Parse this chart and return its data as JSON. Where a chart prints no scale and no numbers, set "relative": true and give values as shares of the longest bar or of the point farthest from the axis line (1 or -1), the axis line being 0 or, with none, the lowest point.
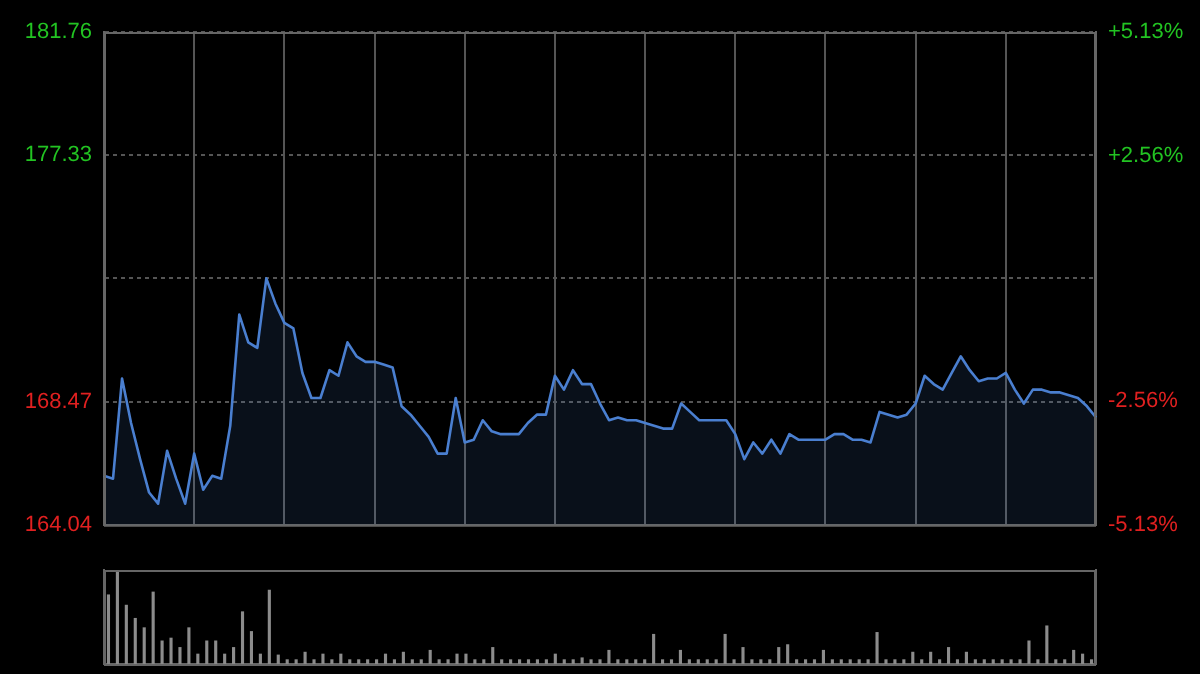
{
  "chart_data": [
    {
      "type": "area",
      "categories": [
        null,
        null,
        null,
        null,
        null,
        null,
        null,
        null,
        null,
        null,
        null,
        null,
        null,
        null,
        null,
        null,
        null,
        null,
        null,
        null,
        null,
        null,
        null,
        null,
        null,
        null,
        null,
        null,
        null,
        null,
        null,
        null,
        null,
        null,
        null,
        null,
        null,
        null,
        null,
        null,
        null,
        null,
        null,
        null,
        null,
        null,
        null,
        null,
        null,
        null,
        null,
        null,
        null,
        null,
        null,
        null,
        null,
        null,
        null,
        null,
        null,
        null,
        null,
        null,
        null,
        null,
        null,
        null,
        null,
        null,
        null,
        null,
        null,
        null,
        null,
        null,
        null,
        null,
        null,
        null,
        null,
        null,
        null,
        null,
        null,
        null,
        null,
        null,
        null,
        null,
        null,
        null,
        null,
        null,
        null,
        null,
        null,
        null,
        null,
        null,
        null,
        null,
        null,
        null,
        null,
        null,
        null,
        null,
        null,
        null,
        null
      ],
      "series": [
        {
          "color": "#4a7fd0",
          "values": [
            165.8,
            165.7,
            169.3,
            167.7,
            166.4,
            165.2,
            164.8,
            166.7,
            165.7,
            164.8,
            166.6,
            165.3,
            165.8,
            165.7,
            167.6,
            171.6,
            170.6,
            170.4,
            172.9,
            172.0,
            171.3,
            171.1,
            169.5,
            168.6,
            168.6,
            169.6,
            169.4,
            170.6,
            170.1,
            169.9,
            169.9,
            169.8,
            169.7,
            168.3,
            168.0,
            167.6,
            167.2,
            166.6,
            166.6,
            168.6,
            167.0,
            167.1,
            167.8,
            167.4,
            167.3,
            167.3,
            167.3,
            167.7,
            168.0,
            168.0,
            169.4,
            168.9,
            169.6,
            169.1,
            169.1,
            168.4,
            167.8,
            167.9,
            167.8,
            167.8,
            167.7,
            167.6,
            167.5,
            167.5,
            168.4,
            168.1,
            167.8,
            167.8,
            167.8,
            167.8,
            167.3,
            166.4,
            167.0,
            166.6,
            167.1,
            166.6,
            167.3,
            167.1,
            167.1,
            167.1,
            167.1,
            167.3,
            167.3,
            167.1,
            167.1,
            167.0,
            168.1,
            168.0,
            167.9,
            168.0,
            168.4,
            169.4,
            169.1,
            168.9,
            169.5,
            170.1,
            169.6,
            169.2,
            169.3,
            169.3,
            169.5,
            168.9,
            168.4,
            168.9,
            168.9,
            168.8,
            168.8,
            168.7,
            168.6,
            168.3,
            167.9
          ]
        }
      ],
      "ylim": [
        164.04,
        181.76
      ],
      "yticks": [
        164.04,
        168.47,
        {
          "value": 172.9,
          "label": null
        },
        177.33,
        181.76
      ],
      "y2lim": [
        -5.13,
        5.13
      ],
      "y2ticks": [
        {
          "value": -5.13,
          "label": "-5.13%"
        },
        {
          "value": -2.56,
          "label": "-2.56%"
        },
        {
          "value": 0,
          "label": null
        },
        {
          "value": 2.56,
          "label": "+2.56%"
        },
        {
          "value": 5.13,
          "label": "+5.13%"
        }
      ],
      "grid": true,
      "legend": false,
      "marker": "none",
      "line_style": "solid"
    },
    {
      "type": "bar",
      "relative": true,
      "categories": [
        null,
        null,
        null,
        null,
        null,
        null,
        null,
        null,
        null,
        null,
        null,
        null,
        null,
        null,
        null,
        null,
        null,
        null,
        null,
        null,
        null,
        null,
        null,
        null,
        null,
        null,
        null,
        null,
        null,
        null,
        null,
        null,
        null,
        null,
        null,
        null,
        null,
        null,
        null,
        null,
        null,
        null,
        null,
        null,
        null,
        null,
        null,
        null,
        null,
        null,
        null,
        null,
        null,
        null,
        null,
        null,
        null,
        null,
        null,
        null,
        null,
        null,
        null,
        null,
        null,
        null,
        null,
        null,
        null,
        null,
        null,
        null,
        null,
        null,
        null,
        null,
        null,
        null,
        null,
        null,
        null,
        null,
        null,
        null,
        null,
        null,
        null,
        null,
        null,
        null,
        null,
        null,
        null,
        null,
        null,
        null,
        null,
        null,
        null,
        null,
        null,
        null,
        null,
        null,
        null,
        null,
        null,
        null,
        null,
        null,
        null
      ],
      "series": [
        {
          "color": "#8c8c8c",
          "values": [
            0.74,
            1,
            0.63,
            0.49,
            0.39,
            0.77,
            0.25,
            0.28,
            0.18,
            0.39,
            0.11,
            0.25,
            0.25,
            0.11,
            0.18,
            0.56,
            0.35,
            0.11,
            0.79,
            0.1,
            0.05,
            0.05,
            0.13,
            0.05,
            0.11,
            0.05,
            0.11,
            0.05,
            0.05,
            0.05,
            0.05,
            0.11,
            0.05,
            0.13,
            0.05,
            0.05,
            0.15,
            0.05,
            0.05,
            0.11,
            0.11,
            0.05,
            0.05,
            0.18,
            0.05,
            0.05,
            0.05,
            0.05,
            0.05,
            0.05,
            0.11,
            0.05,
            0.05,
            0.07,
            0.05,
            0.05,
            0.15,
            0.05,
            0.05,
            0.05,
            0.05,
            0.32,
            0.05,
            0.05,
            0.15,
            0.05,
            0.05,
            0.05,
            0.05,
            0.32,
            0.05,
            0.18,
            0.05,
            0.05,
            0.05,
            0.18,
            0.21,
            0.05,
            0.05,
            0.05,
            0.15,
            0.05,
            0.05,
            0.05,
            0.05,
            0.05,
            0.34,
            0.05,
            0.05,
            0.05,
            0.13,
            0.05,
            0.13,
            0.05,
            0.18,
            0.05,
            0.13,
            0.05,
            0.05,
            0.05,
            0.05,
            0.05,
            0.05,
            0.25,
            0.05,
            0.41,
            0.05,
            0.05,
            0.15,
            0.11,
            0.05
          ]
        }
      ],
      "grid": false,
      "legend": false
    }
  ]
}
